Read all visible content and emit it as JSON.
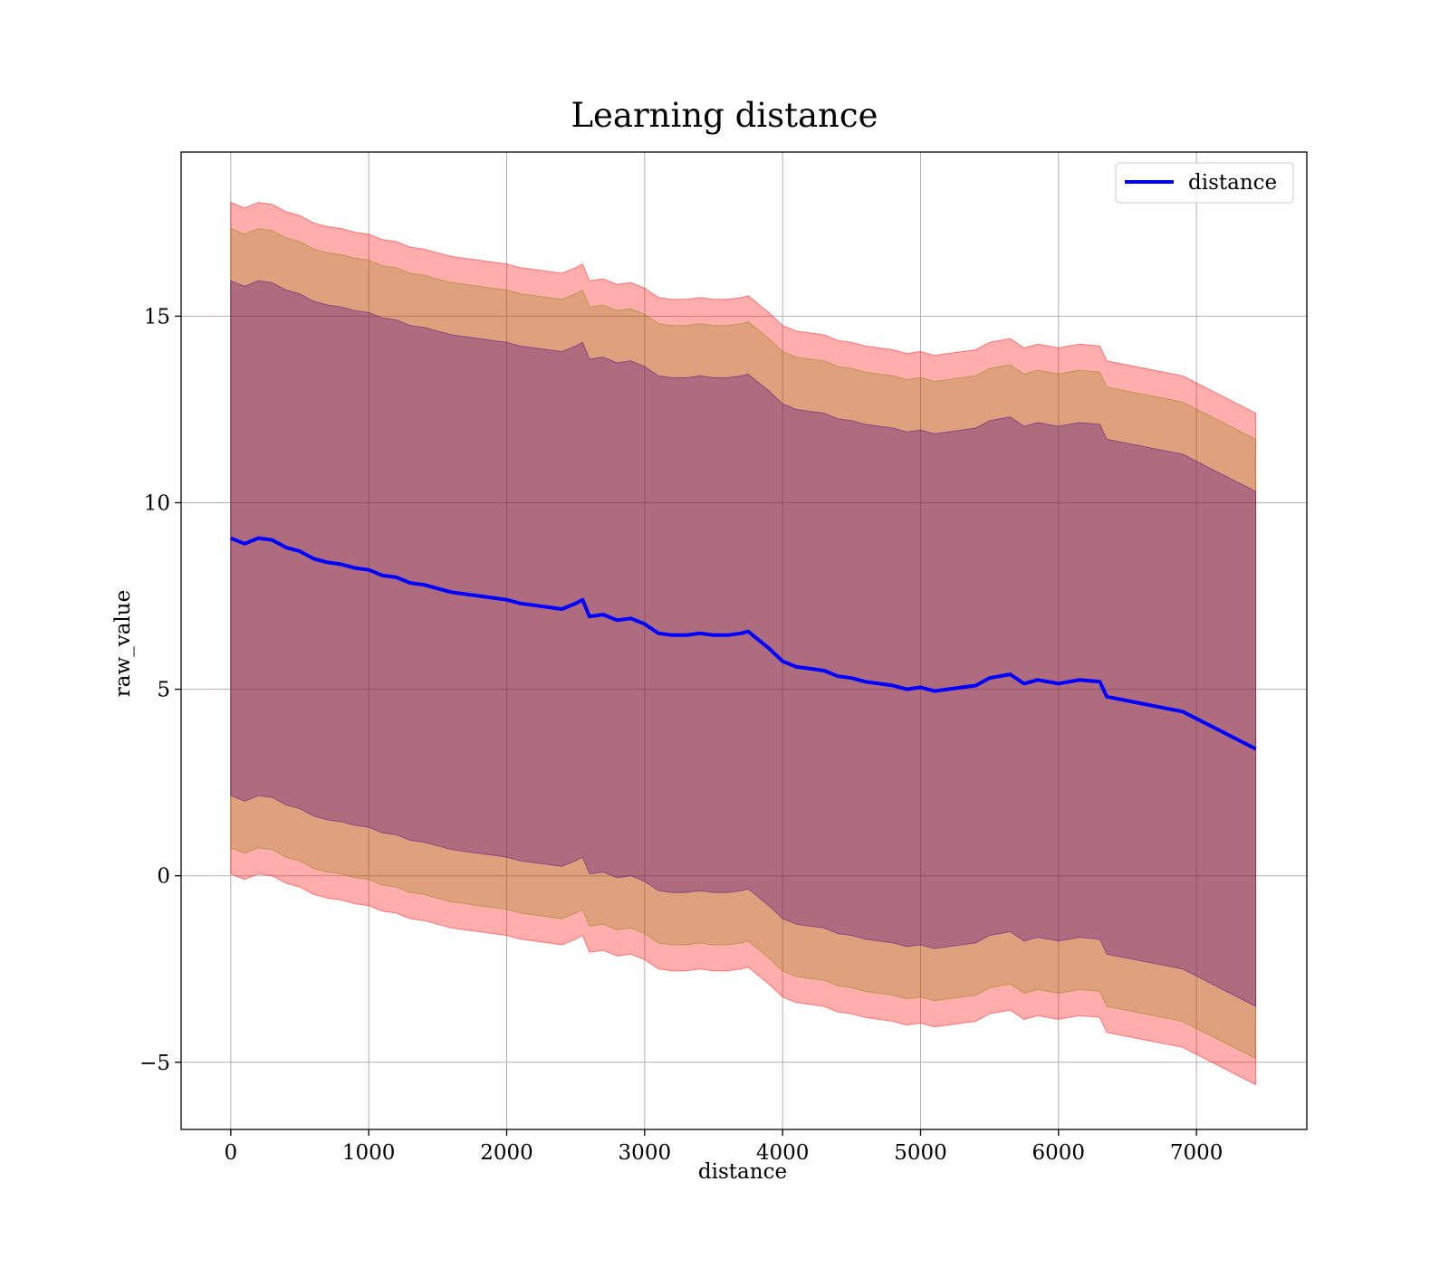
{
  "chart_data": {
    "type": "line",
    "title": "Learning distance",
    "xlabel": "distance",
    "ylabel": "raw_value",
    "xlim": [
      -360,
      7800
    ],
    "ylim": [
      -6.8,
      19.4
    ],
    "xticks": [
      0,
      1000,
      2000,
      3000,
      4000,
      5000,
      6000,
      7000
    ],
    "xtick_labels": [
      "0",
      "1000",
      "2000",
      "3000",
      "4000",
      "5000",
      "6000",
      "7000"
    ],
    "yticks": [
      -5,
      0,
      5,
      10,
      15
    ],
    "ytick_labels": [
      "−5",
      "0",
      "5",
      "10",
      "15"
    ],
    "grid": true,
    "legend_position": "top-right",
    "x": [
      0,
      100,
      200,
      300,
      400,
      500,
      600,
      700,
      800,
      900,
      1000,
      1100,
      1200,
      1300,
      1400,
      1500,
      1600,
      1700,
      1800,
      1900,
      2000,
      2100,
      2200,
      2300,
      2400,
      2500,
      2550,
      2600,
      2700,
      2800,
      2900,
      3000,
      3100,
      3200,
      3300,
      3400,
      3500,
      3600,
      3700,
      3750,
      3800,
      3850,
      3900,
      4000,
      4100,
      4200,
      4300,
      4400,
      4500,
      4600,
      4700,
      4800,
      4900,
      5000,
      5100,
      5200,
      5300,
      5400,
      5500,
      5650,
      5750,
      5850,
      6000,
      6150,
      6300,
      6350,
      6900,
      7430
    ],
    "series": [
      {
        "name": "distance",
        "color": "#0000ff",
        "values": [
          9.05,
          8.9,
          9.05,
          9.0,
          8.8,
          8.7,
          8.5,
          8.4,
          8.35,
          8.25,
          8.2,
          8.05,
          8.0,
          7.85,
          7.8,
          7.7,
          7.6,
          7.55,
          7.5,
          7.45,
          7.4,
          7.3,
          7.25,
          7.2,
          7.15,
          7.3,
          7.4,
          6.95,
          7.0,
          6.85,
          6.9,
          6.75,
          6.5,
          6.45,
          6.45,
          6.5,
          6.45,
          6.45,
          6.5,
          6.55,
          6.4,
          6.25,
          6.1,
          5.75,
          5.6,
          5.55,
          5.5,
          5.35,
          5.3,
          5.2,
          5.15,
          5.1,
          5.0,
          5.05,
          4.95,
          5.0,
          5.05,
          5.1,
          5.3,
          5.4,
          5.15,
          5.25,
          5.15,
          5.25,
          5.2,
          4.8,
          4.4,
          3.4
        ]
      }
    ],
    "bands": [
      {
        "color": "#ff0000",
        "opacity": 0.32,
        "half_width_start": 9.0,
        "half_width_end": 9.0
      },
      {
        "color": "#8b8000",
        "opacity": 0.28,
        "half_width_start": 8.3,
        "half_width_end": 8.3
      },
      {
        "color": "#4b0082",
        "opacity": 0.33,
        "half_width_start": 6.9,
        "half_width_end": 6.9
      }
    ]
  }
}
